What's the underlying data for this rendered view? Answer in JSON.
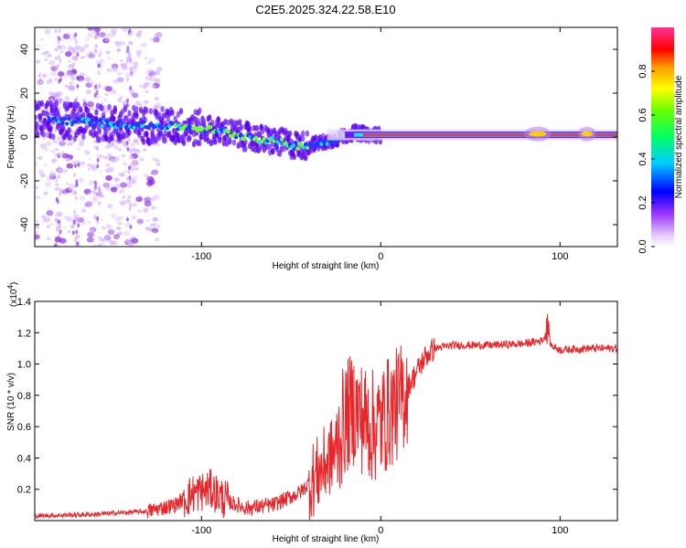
{
  "title": "C2E5.2025.324.22.58.E10",
  "chart_data": [
    {
      "type": "heatmap",
      "name": "spectrogram",
      "xlabel": "Height of straight line (km)",
      "ylabel": "Frequency (Hz)",
      "xlim": [
        -193,
        132
      ],
      "ylim": [
        -50,
        50
      ],
      "x_ticks": [
        -100,
        0,
        100
      ],
      "y_ticks": [
        -40,
        -20,
        0,
        20,
        40
      ],
      "colorbar": {
        "label": "Normalized spectral amplitude",
        "range": [
          0,
          1
        ],
        "ticks": [
          "0.0",
          "0.2",
          "0.4",
          "0.6",
          "0.8"
        ]
      },
      "ridge": {
        "description_points_x": [
          -185,
          -150,
          -120,
          -100,
          -80,
          -60,
          -45,
          -35,
          -25,
          -15,
          -5,
          0,
          20,
          50,
          80,
          90,
          100,
          132
        ],
        "center_freq_hz": [
          8,
          6,
          5,
          4,
          1,
          -2,
          -4,
          -3,
          -1,
          2,
          1,
          1,
          1,
          1,
          1,
          3,
          1,
          1
        ]
      }
    },
    {
      "type": "line",
      "name": "snr",
      "xlabel": "Height of straight line (km)",
      "ylabel": "SNR (10 * v/v)",
      "multiplier": "(x10",
      "multiplier_exp": "4",
      "multiplier_close": ")",
      "xlim": [
        -193,
        132
      ],
      "ylim": [
        0,
        1.4
      ],
      "x_ticks": [
        -100,
        0,
        100
      ],
      "y_ticks": [
        0.2,
        0.4,
        0.6,
        0.8,
        1.0,
        1.2,
        1.4
      ],
      "y_tick_labels": [
        "0.2",
        "0.4",
        "0.6",
        "0.8",
        "1.0",
        "1.2",
        "1.4"
      ],
      "series_color": "#e8262a",
      "envelope_x": [
        -193,
        -160,
        -130,
        -115,
        -105,
        -95,
        -85,
        -75,
        -60,
        -45,
        -35,
        -25,
        -20,
        -15,
        -10,
        -5,
        0,
        5,
        10,
        15,
        20,
        25,
        30,
        40,
        60,
        80,
        90,
        93,
        95,
        100,
        115,
        132
      ],
      "envelope_y": [
        0.03,
        0.04,
        0.06,
        0.1,
        0.17,
        0.2,
        0.12,
        0.08,
        0.1,
        0.18,
        0.3,
        0.45,
        0.65,
        0.72,
        0.65,
        0.6,
        0.62,
        0.7,
        0.75,
        0.85,
        0.95,
        1.05,
        1.1,
        1.12,
        1.12,
        1.13,
        1.15,
        1.2,
        1.12,
        1.09,
        1.1,
        1.1
      ]
    }
  ]
}
